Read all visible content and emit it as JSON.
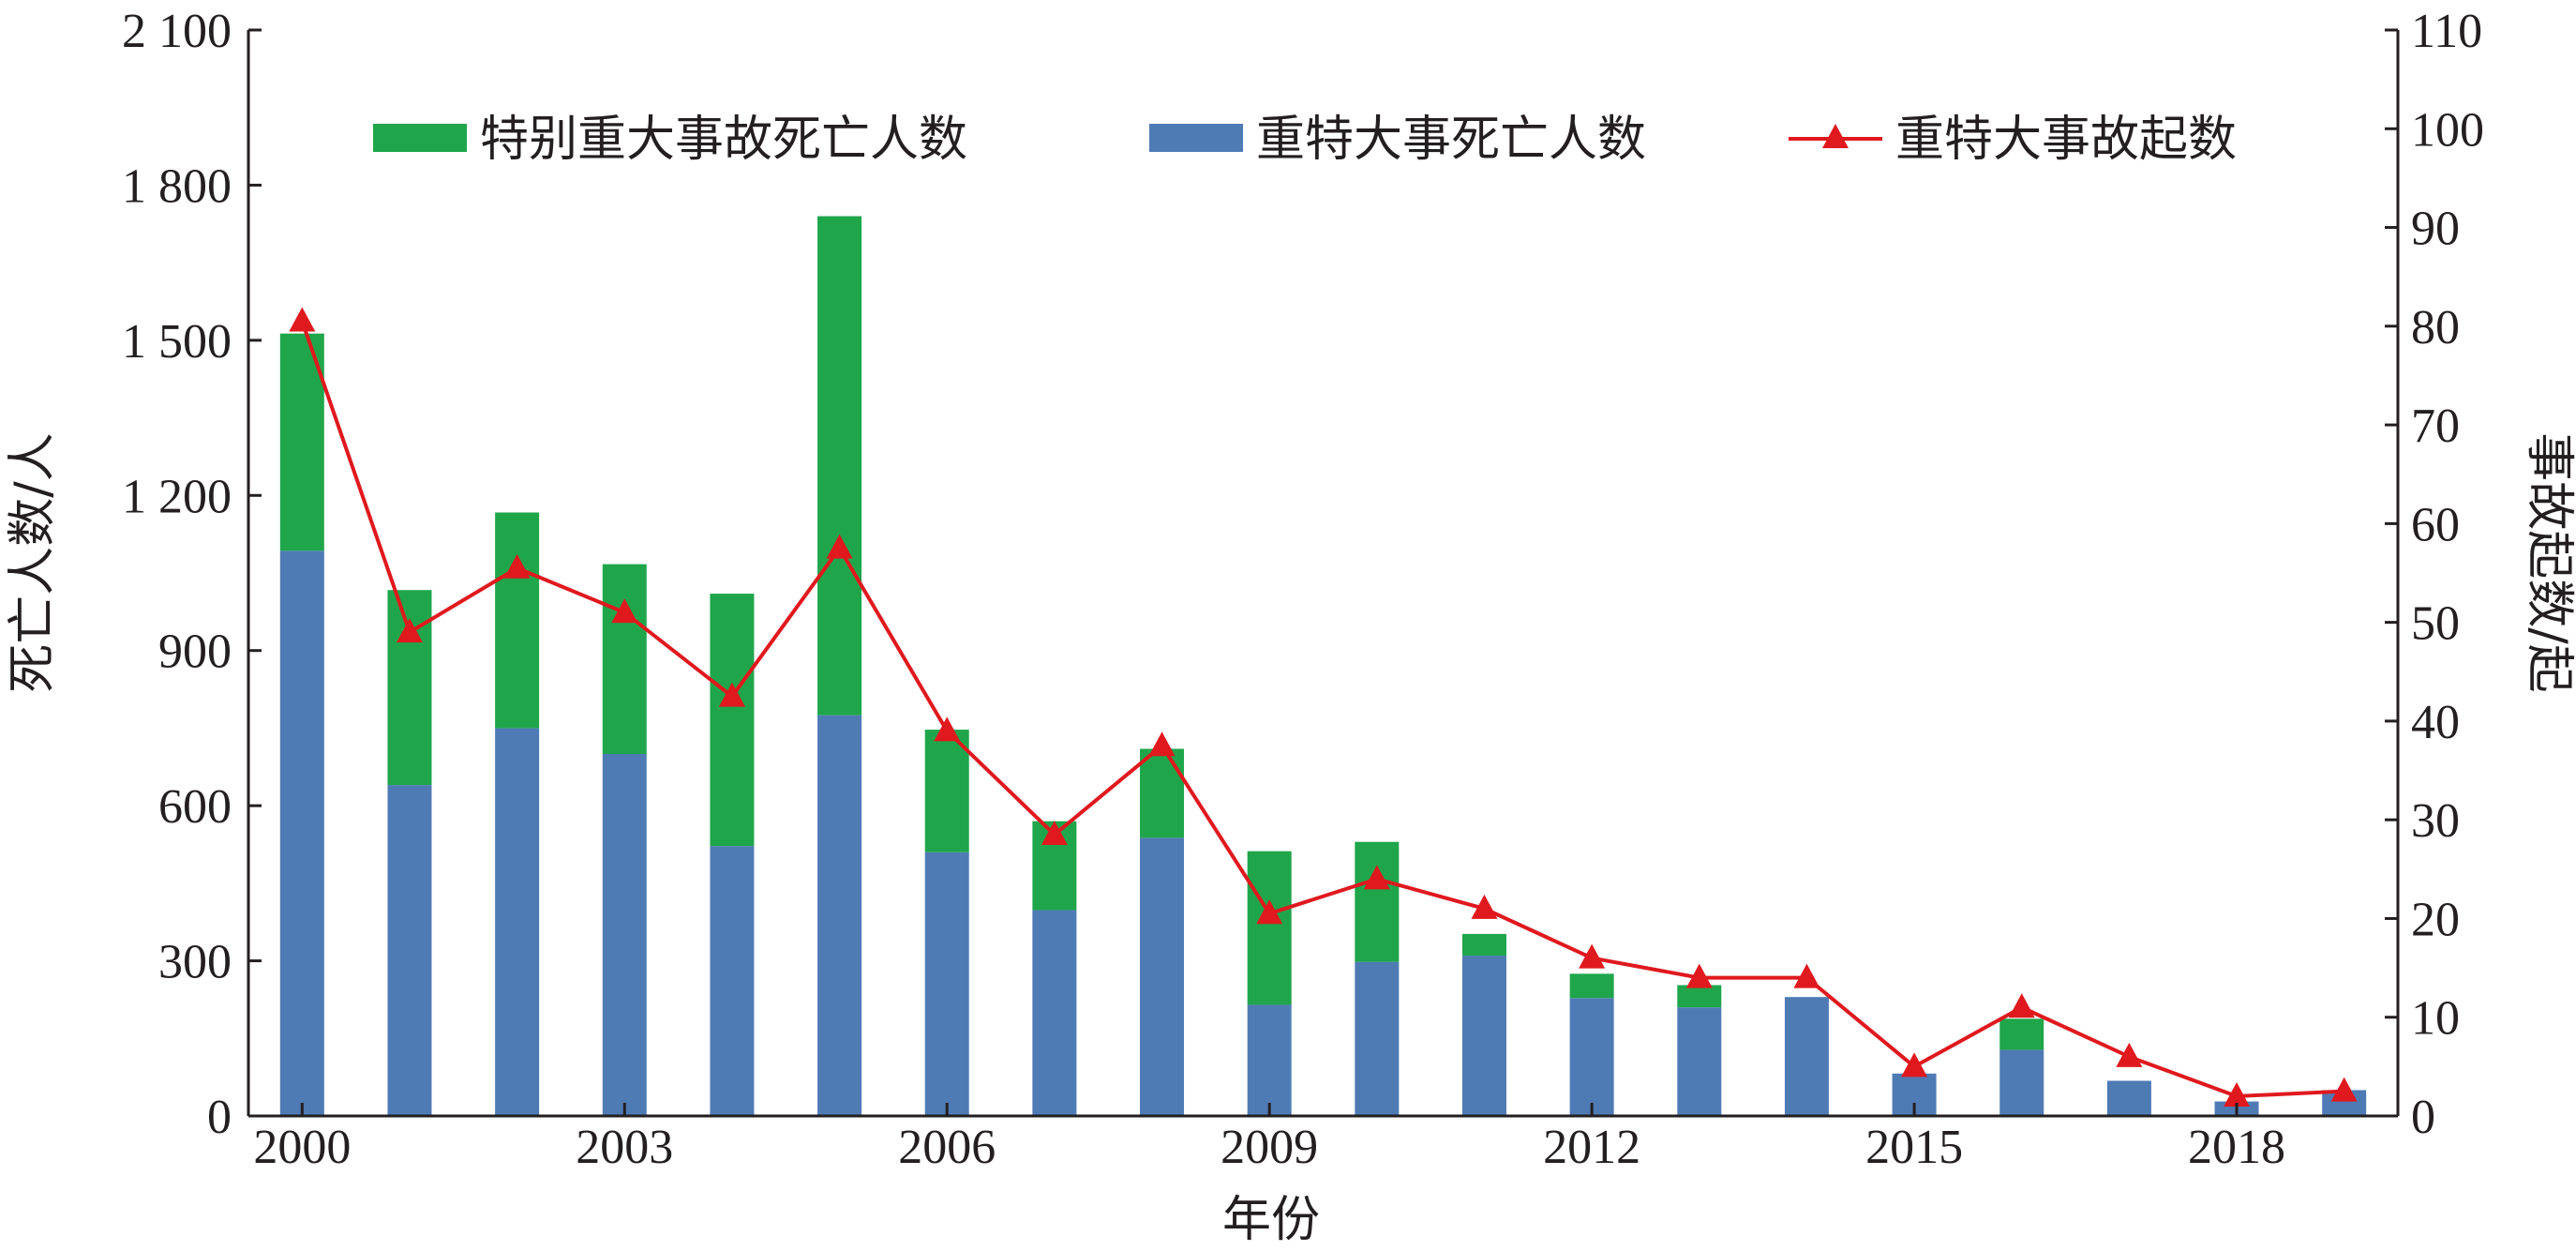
{
  "chart_data": {
    "type": "bar",
    "stacked": true,
    "categories": [
      "2000",
      "2001",
      "2002",
      "2003",
      "2004",
      "2005",
      "2006",
      "2007",
      "2008",
      "2009",
      "2010",
      "2011",
      "2012",
      "2013",
      "2014",
      "2015",
      "2016",
      "2017",
      "2018",
      "2019"
    ],
    "x_tick_labels": [
      "2000",
      "2003",
      "2006",
      "2009",
      "2012",
      "2015",
      "2018"
    ],
    "xlabel": "年份",
    "ylabel_left": "死亡人数/人",
    "ylabel_right": "事故起数/起",
    "ylim_left": [
      0,
      2100
    ],
    "ylim_right": [
      0,
      110
    ],
    "y_ticks_left": [
      "0",
      "300",
      "600",
      "900",
      "1 200",
      "1 500",
      "1 800",
      "2 100"
    ],
    "y_ticks_right": [
      "0",
      "10",
      "20",
      "30",
      "40",
      "50",
      "60",
      "70",
      "80",
      "90",
      "100",
      "110"
    ],
    "legend_position": "top",
    "series": [
      {
        "name": "重特大事死亡人数",
        "kind": "bar",
        "axis": "left",
        "color": "#4f7bb5",
        "values": [
          1093,
          640,
          750,
          700,
          522,
          775,
          510,
          398,
          538,
          215,
          298,
          310,
          228,
          210,
          230,
          82,
          128,
          68,
          28,
          50
        ]
      },
      {
        "name": "特别重大事故死亡人数",
        "kind": "bar",
        "axis": "left",
        "color": "#1fa64b",
        "values": [
          420,
          377,
          417,
          367,
          488,
          965,
          237,
          172,
          172,
          297,
          232,
          42,
          47,
          43,
          0,
          0,
          60,
          0,
          0,
          0
        ]
      },
      {
        "name": "重特大事故起数",
        "kind": "line",
        "axis": "right",
        "color": "#e0191e",
        "marker": "triangle",
        "values": [
          80.5,
          49,
          55.5,
          51,
          42.5,
          57.5,
          39,
          28.5,
          37.5,
          20.5,
          24,
          21,
          16,
          14,
          14,
          5,
          11,
          6,
          2,
          2.5
        ]
      }
    ]
  }
}
